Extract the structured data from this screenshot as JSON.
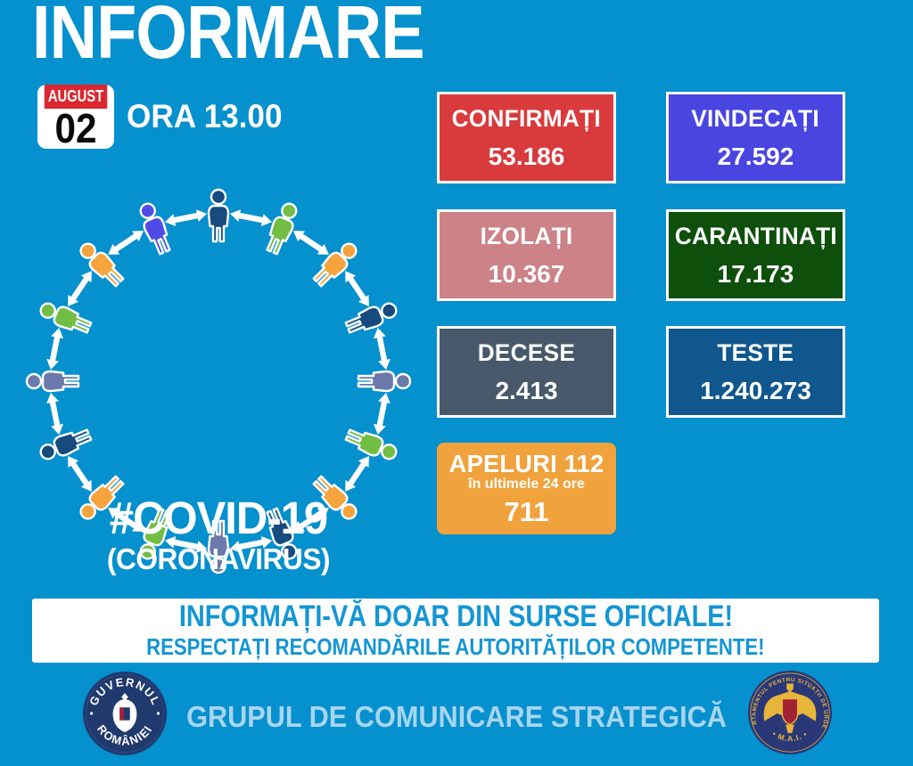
{
  "title": "INFORMARE",
  "date": {
    "month": "AUGUST",
    "day": "02",
    "time_label": "ORA 13.00"
  },
  "center_graphic": {
    "hashtag": "#COVID-19",
    "subtitle": "(CORONAVIRUS)",
    "person_colors": [
      "#174A7D",
      "#72BE44",
      "#F5A33C",
      "#174A7D",
      "#6B79AD",
      "#72BE44",
      "#F5A33C",
      "#174A7D",
      "#6B79AD",
      "#72BE44",
      "#F5A33C",
      "#174A7D",
      "#6B79AD",
      "#72BE44",
      "#F5A33C",
      "#4F4CE6"
    ],
    "arrow_color": "#ffffff"
  },
  "stats": [
    {
      "id": "confirmati",
      "label": "CONFIRMAȚI",
      "value": "53.186",
      "bg": "#D93B3D"
    },
    {
      "id": "vindecati",
      "label": "VINDECAȚI",
      "value": "27.592",
      "bg": "#4845E0"
    },
    {
      "id": "izolati",
      "label": "IZOLAȚI",
      "value": "10.367",
      "bg": "#CC8287"
    },
    {
      "id": "carantinati",
      "label": "CARANTINAȚI",
      "value": "17.173",
      "bg": "#0E4F0B"
    },
    {
      "id": "decese",
      "label": "DECESE",
      "value": "2.413",
      "bg": "#47596B"
    },
    {
      "id": "teste",
      "label": "TESTE",
      "value": "1.240.273",
      "bg": "#10578D"
    },
    {
      "id": "apeluri",
      "label": "APELURI 112",
      "sublabel": "în ultimele 24 ore",
      "value": "711",
      "bg": "#F0A23C"
    }
  ],
  "banner": {
    "line1": "INFORMAȚI-VĂ DOAR DIN SURSE OFICIALE!",
    "line2": "RESPECTAȚI RECOMANDĂRILE AUTORITĂȚILOR COMPETENTE!"
  },
  "footer": {
    "text": "GRUPUL DE COMUNICARE STRATEGICĂ",
    "left_seal": {
      "top_text": "GUVERNUL",
      "bottom_text": "ROMÂNIEI"
    },
    "right_seal": {
      "around_text": "DEPARTAMENTUL PENTRU SITUAȚII DE URGENȚĂ",
      "bottom_text": "• M.A.I. •"
    }
  },
  "colors": {
    "background": "#0590CE",
    "banner_text": "#1496D4",
    "footer_text": "#A7D5F0",
    "calendar_red": "#DB2830",
    "seal_navy_left": "#203A6E",
    "seal_navy_right": "#2A3878",
    "seal_gold": "#E7B53A",
    "seal_red": "#A32135"
  }
}
